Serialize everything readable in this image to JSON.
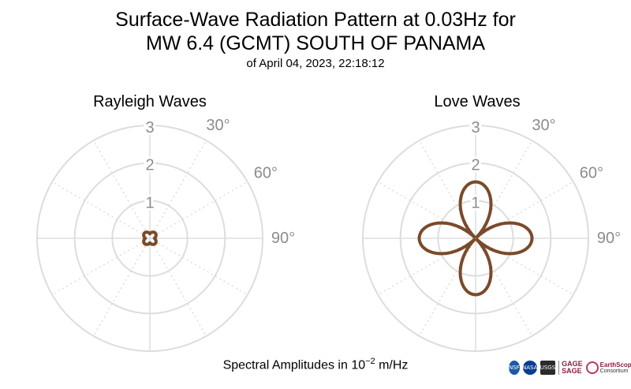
{
  "title": {
    "line1": "Surface-Wave Radiation Pattern at 0.03Hz for",
    "line2": "MW 6.4 (GCMT) SOUTH OF PANAMA",
    "subtitle": "of April 04, 2023, 22:18:12"
  },
  "footer": {
    "label_prefix": "Spectral Amplitudes in 10",
    "label_exp": "−2",
    "label_suffix": " m/Hz"
  },
  "logos": {
    "nsf": "NSF",
    "nasa": "NASA",
    "usgs": "USGS",
    "gage": "GAGE",
    "sage": "SAGE",
    "earthscope": "EarthScope",
    "consortium": "Consortium"
  },
  "colors": {
    "curve": "#7a4a2a",
    "grid": "#dddddd",
    "tick_text": "#8c8c8c"
  },
  "chart_data": [
    {
      "type": "polar",
      "title": "Rayleigh Waves",
      "r_max": 3,
      "r_ticks": [
        1,
        2,
        3
      ],
      "r_tick_labels": [
        "1",
        "2",
        "3"
      ],
      "theta_tick_labels": [
        "30°",
        "60°",
        "90°"
      ],
      "theta_ticks_deg": [
        30,
        60,
        90
      ],
      "grid": true,
      "pattern": {
        "lobes": 4,
        "max_amplitude": 0.2,
        "min_amplitude": 0.12,
        "lobe_azimuth_deg": 45
      }
    },
    {
      "type": "polar",
      "title": "Love Waves",
      "r_max": 3,
      "r_ticks": [
        1,
        2,
        3
      ],
      "r_tick_labels": [
        "1",
        "2",
        "3"
      ],
      "theta_tick_labels": [
        "30°",
        "60°",
        "90°"
      ],
      "theta_ticks_deg": [
        30,
        60,
        90
      ],
      "grid": true,
      "pattern": {
        "lobes": 4,
        "max_amplitude": 1.5,
        "min_amplitude": 0.0,
        "lobe_azimuth_deg": 0
      }
    }
  ]
}
